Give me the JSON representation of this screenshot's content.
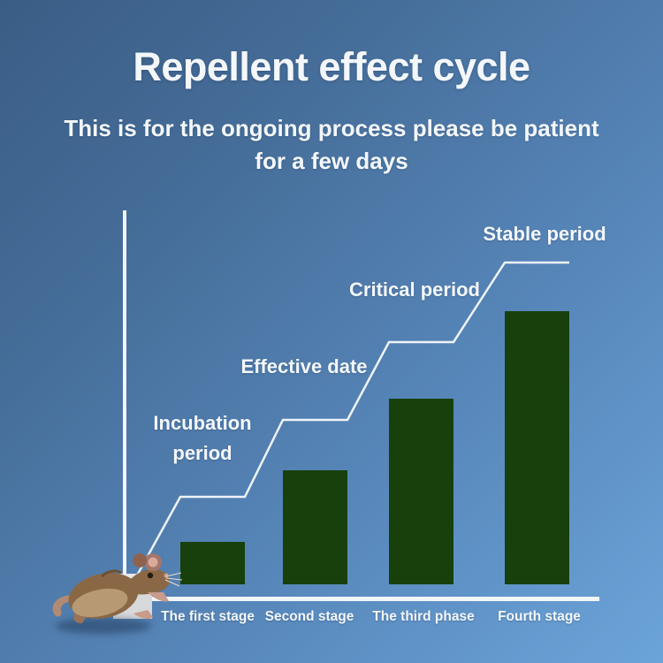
{
  "header": {
    "title": "Repellent effect cycle",
    "subtitle_line1": "This is for the ongoing process please be patient",
    "subtitle_line2": "for a few days"
  },
  "chart_data": {
    "type": "bar",
    "title": "Repellent effect cycle",
    "categories": [
      "The first stage",
      "Second stage",
      "The third phase",
      "Fourth stage"
    ],
    "values": [
      11,
      29.5,
      48,
      70.5
    ],
    "unit": "relative bar height, % of y-axis (no numeric scale shown)",
    "annotations": [
      "Incubation period",
      "Effective date",
      "Critical period",
      "Stable period"
    ],
    "step_line_levels": [
      26,
      46,
      66,
      86.5
    ],
    "xlabel": "",
    "ylabel": "",
    "legend": "off",
    "grid": "off",
    "bar_color": "#17400d",
    "axis_color": "#f2f6f9",
    "line_color": "#eef4f8"
  },
  "decoration": {
    "mouse_image": "running-mouse-photo",
    "text_color": "#f4f7fa",
    "background_top_left": "#3a5d85",
    "background_bottom_right": "#6ba4d9"
  }
}
